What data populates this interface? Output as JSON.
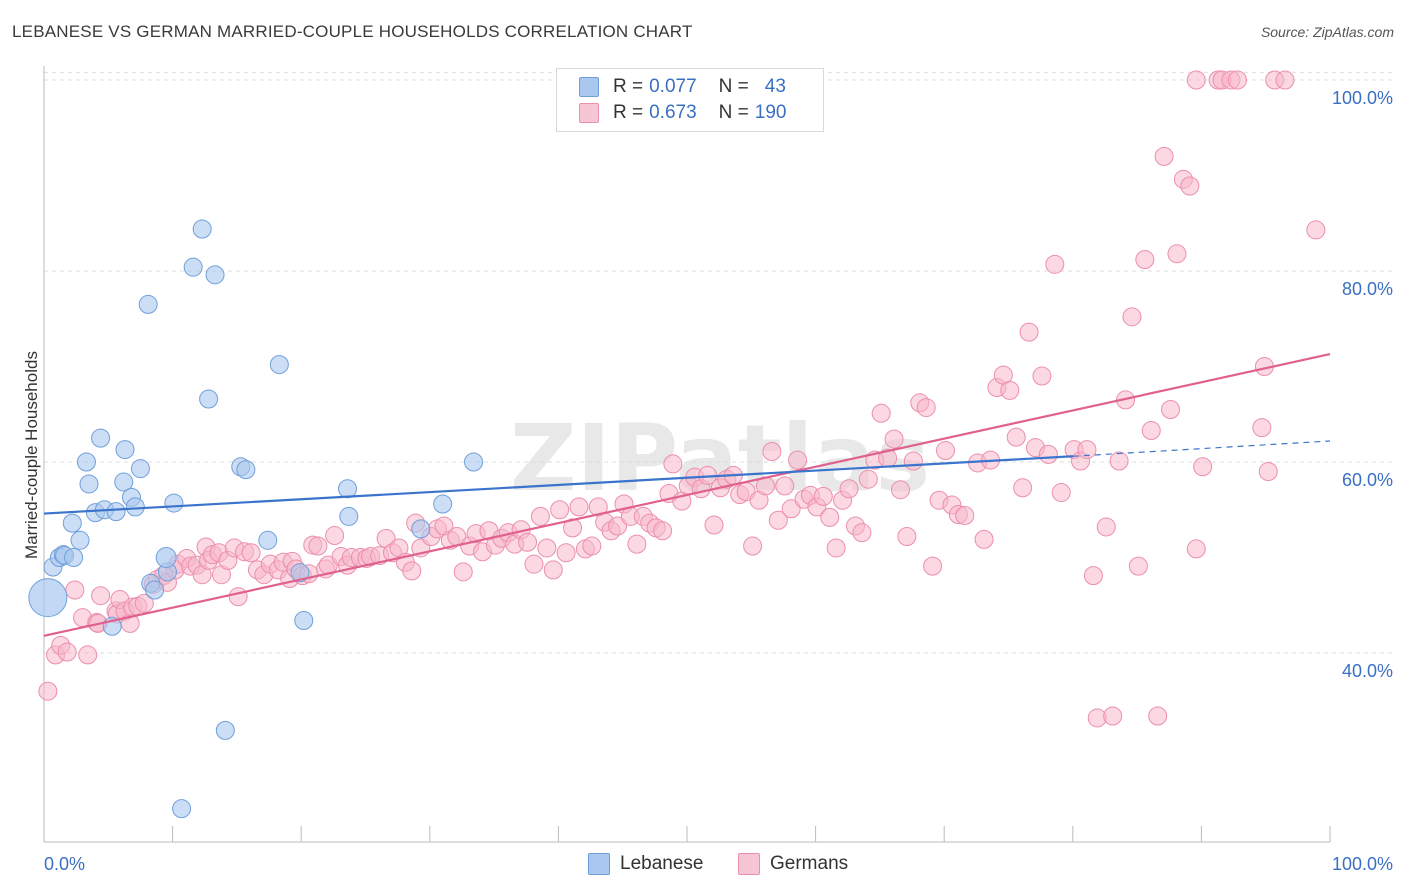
{
  "title": "LEBANESE VS GERMAN MARRIED-COUPLE HOUSEHOLDS CORRELATION CHART",
  "source": "Source: ZipAtlas.com",
  "watermark": "ZIPatlas",
  "colors": {
    "lebanese_fill": "#aac8ef",
    "lebanese_stroke": "#6f9fdb",
    "lebanese_line": "#3a74cc",
    "germans_fill": "#f7b8cb",
    "germans_stroke": "#ec8fac",
    "germans_line": "#e0608e",
    "axis_text": "#3a6fc4",
    "grid": "#dddddd"
  },
  "legend": {
    "rows": [
      {
        "r_label": "R =",
        "r_value": "0.077",
        "n_label": "N =",
        "n_value": "43"
      },
      {
        "r_label": "R =",
        "r_value": "0.673",
        "n_label": "N =",
        "n_value": "190"
      }
    ]
  },
  "bottom_legend": {
    "lebanese": "Lebanese",
    "germans": "Germans"
  },
  "chart_data": {
    "type": "scatter",
    "title": "LEBANESE VS GERMAN MARRIED-COUPLE HOUSEHOLDS CORRELATION CHART",
    "xlabel": "",
    "ylabel": "Married-couple Households",
    "xlim": [
      0,
      100
    ],
    "ylim": [
      20,
      102
    ],
    "x_tick_labels": [
      "0.0%",
      "100.0%"
    ],
    "y_ticks": [
      40,
      60,
      80,
      100
    ],
    "y_tick_labels": [
      "40.0%",
      "60.0%",
      "80.0%",
      "100.0%"
    ],
    "series": [
      {
        "name": "Lebanese",
        "R": 0.077,
        "N": 43,
        "trend": {
          "x0": 0,
          "y0": 54.6,
          "x1": 80,
          "y1": 60.6,
          "dashed_to_x": 100,
          "dashed_to_y": 62.2
        },
        "points": [
          [
            0.7,
            49
          ],
          [
            1.2,
            50
          ],
          [
            1.5,
            50.3
          ],
          [
            2.2,
            53.6
          ],
          [
            2.8,
            51.8
          ],
          [
            1.6,
            50.2
          ],
          [
            2.3,
            50
          ],
          [
            3.3,
            60
          ],
          [
            3.5,
            57.7
          ],
          [
            4.0,
            54.7
          ],
          [
            4.4,
            62.5
          ],
          [
            4.7,
            55
          ],
          [
            5.3,
            42.8
          ],
          [
            5.6,
            54.8
          ],
          [
            6.3,
            61.3
          ],
          [
            6.2,
            57.9
          ],
          [
            6.8,
            56.3
          ],
          [
            7.1,
            55.3
          ],
          [
            7.5,
            59.3
          ],
          [
            8.1,
            76.5
          ],
          [
            8.3,
            47.3
          ],
          [
            8.6,
            46.6
          ],
          [
            9.6,
            48.5
          ],
          [
            10.1,
            55.7
          ],
          [
            10.7,
            23.7
          ],
          [
            11.6,
            80.4
          ],
          [
            12.3,
            84.4
          ],
          [
            12.8,
            66.6
          ],
          [
            13.3,
            79.6
          ],
          [
            14.1,
            31.9
          ],
          [
            15.3,
            59.5
          ],
          [
            15.7,
            59.2
          ],
          [
            17.4,
            51.8
          ],
          [
            18.3,
            70.2
          ],
          [
            19.9,
            48.4
          ],
          [
            20.2,
            43.4
          ],
          [
            23.6,
            57.2
          ],
          [
            23.7,
            54.3
          ],
          [
            29.3,
            53
          ],
          [
            31.0,
            55.6
          ],
          [
            33.4,
            60
          ]
        ],
        "big_points": [
          [
            0.3,
            45.8
          ],
          [
            9.5,
            50
          ]
        ]
      },
      {
        "name": "Germans",
        "R": 0.673,
        "N": 190,
        "trend": {
          "x0": 0,
          "y0": 41.8,
          "x1": 100,
          "y1": 71.3
        },
        "points": [
          [
            0.3,
            36
          ],
          [
            0.9,
            39.8
          ],
          [
            1.3,
            40.8
          ],
          [
            1.8,
            40.1
          ],
          [
            2.4,
            46.6
          ],
          [
            3.0,
            43.7
          ],
          [
            3.4,
            39.8
          ],
          [
            4.1,
            43.2
          ],
          [
            4.2,
            43.1
          ],
          [
            4.4,
            46
          ],
          [
            5.6,
            44.4
          ],
          [
            5.7,
            44.1
          ],
          [
            5.9,
            45.6
          ],
          [
            6.3,
            44.4
          ],
          [
            6.7,
            43.1
          ],
          [
            6.9,
            44.8
          ],
          [
            7.3,
            44.9
          ],
          [
            7.8,
            45.2
          ],
          [
            8.5,
            47.2
          ],
          [
            8.8,
            47.7
          ],
          [
            9.3,
            48.1
          ],
          [
            9.6,
            47.4
          ],
          [
            10.2,
            48.7
          ],
          [
            10.4,
            49.3
          ],
          [
            11.1,
            49.9
          ],
          [
            11.4,
            49.1
          ],
          [
            11.9,
            49.2
          ],
          [
            12.3,
            48.2
          ],
          [
            12.6,
            51.1
          ],
          [
            12.8,
            49.7
          ],
          [
            13.1,
            50.3
          ],
          [
            13.6,
            50.5
          ],
          [
            13.8,
            48.2
          ],
          [
            14.3,
            49.7
          ],
          [
            14.8,
            51
          ],
          [
            15.1,
            45.9
          ],
          [
            15.6,
            50.6
          ],
          [
            16.1,
            50.5
          ],
          [
            16.6,
            48.7
          ],
          [
            17.1,
            48.2
          ],
          [
            17.6,
            49.3
          ],
          [
            18.2,
            48.7
          ],
          [
            18.6,
            49.5
          ],
          [
            19.1,
            47.8
          ],
          [
            19.3,
            49.6
          ],
          [
            19.6,
            48.8
          ],
          [
            20.1,
            48.1
          ],
          [
            20.6,
            48.3
          ],
          [
            20.9,
            51.3
          ],
          [
            21.3,
            51.2
          ],
          [
            21.9,
            48.8
          ],
          [
            22.1,
            49.2
          ],
          [
            22.6,
            52.3
          ],
          [
            23.1,
            50.1
          ],
          [
            23.6,
            49.2
          ],
          [
            23.9,
            50
          ],
          [
            24.6,
            50
          ],
          [
            25.1,
            49.9
          ],
          [
            25.4,
            50.1
          ],
          [
            26.1,
            50.2
          ],
          [
            26.6,
            52
          ],
          [
            27.1,
            50.5
          ],
          [
            27.6,
            51
          ],
          [
            28.1,
            49.5
          ],
          [
            28.6,
            48.6
          ],
          [
            28.9,
            53.6
          ],
          [
            29.3,
            51
          ],
          [
            30.1,
            52.2
          ],
          [
            30.6,
            53
          ],
          [
            31.1,
            53.3
          ],
          [
            31.6,
            51.8
          ],
          [
            32.1,
            52.2
          ],
          [
            32.6,
            48.5
          ],
          [
            33.1,
            51.2
          ],
          [
            33.6,
            52.5
          ],
          [
            34.1,
            50.6
          ],
          [
            34.6,
            52.8
          ],
          [
            35.1,
            51.3
          ],
          [
            35.6,
            52
          ],
          [
            36.1,
            52.6
          ],
          [
            36.6,
            51.4
          ],
          [
            37.1,
            52.9
          ],
          [
            37.6,
            51.6
          ],
          [
            38.1,
            49.3
          ],
          [
            38.6,
            54.3
          ],
          [
            39.1,
            51
          ],
          [
            39.6,
            48.7
          ],
          [
            40.1,
            55
          ],
          [
            40.6,
            50.5
          ],
          [
            41.1,
            53.1
          ],
          [
            41.6,
            55.3
          ],
          [
            42.1,
            50.9
          ],
          [
            42.6,
            51.2
          ],
          [
            43.1,
            55.3
          ],
          [
            43.6,
            53.7
          ],
          [
            44.1,
            52.8
          ],
          [
            44.6,
            53.3
          ],
          [
            45.1,
            55.6
          ],
          [
            45.6,
            54.3
          ],
          [
            46.1,
            51.4
          ],
          [
            46.6,
            54.3
          ],
          [
            47.1,
            53.6
          ],
          [
            47.6,
            53.1
          ],
          [
            48.1,
            52.8
          ],
          [
            48.6,
            56.7
          ],
          [
            48.9,
            59.8
          ],
          [
            49.6,
            55.9
          ],
          [
            50.1,
            57.5
          ],
          [
            50.6,
            58.4
          ],
          [
            51.1,
            57.2
          ],
          [
            51.6,
            58.6
          ],
          [
            52.1,
            53.4
          ],
          [
            52.6,
            57.3
          ],
          [
            53.1,
            58.2
          ],
          [
            53.6,
            58.6
          ],
          [
            54.1,
            56.6
          ],
          [
            54.6,
            56.9
          ],
          [
            55.1,
            51.2
          ],
          [
            55.6,
            56
          ],
          [
            56.1,
            57.5
          ],
          [
            56.6,
            61.1
          ],
          [
            57.1,
            53.9
          ],
          [
            57.6,
            57.5
          ],
          [
            58.1,
            55.1
          ],
          [
            58.6,
            60.2
          ],
          [
            59.1,
            56.1
          ],
          [
            59.6,
            56.5
          ],
          [
            60.1,
            55.3
          ],
          [
            60.6,
            56.4
          ],
          [
            61.1,
            54.2
          ],
          [
            61.6,
            51
          ],
          [
            62.1,
            56
          ],
          [
            62.6,
            57.2
          ],
          [
            63.1,
            53.3
          ],
          [
            63.6,
            52.6
          ],
          [
            64.1,
            58.2
          ],
          [
            64.6,
            60.2
          ],
          [
            65.1,
            65.1
          ],
          [
            65.6,
            60.4
          ],
          [
            66.1,
            62.4
          ],
          [
            66.6,
            57.1
          ],
          [
            67.1,
            52.2
          ],
          [
            67.6,
            60.1
          ],
          [
            68.1,
            66.2
          ],
          [
            68.6,
            65.7
          ],
          [
            69.1,
            49.1
          ],
          [
            69.6,
            56
          ],
          [
            70.1,
            61.2
          ],
          [
            70.6,
            55.5
          ],
          [
            71.1,
            54.5
          ],
          [
            71.6,
            54.4
          ],
          [
            72.6,
            59.9
          ],
          [
            73.1,
            51.9
          ],
          [
            73.6,
            60.2
          ],
          [
            74.1,
            67.8
          ],
          [
            74.6,
            69.1
          ],
          [
            75.1,
            67.5
          ],
          [
            75.6,
            62.6
          ],
          [
            76.1,
            57.3
          ],
          [
            76.6,
            73.6
          ],
          [
            77.1,
            61.5
          ],
          [
            77.6,
            69
          ],
          [
            78.1,
            60.8
          ],
          [
            78.6,
            80.7
          ],
          [
            79.1,
            56.8
          ],
          [
            80.1,
            61.3
          ],
          [
            80.6,
            60.1
          ],
          [
            81.1,
            61.3
          ],
          [
            81.6,
            48.1
          ],
          [
            81.9,
            33.2
          ],
          [
            82.6,
            53.2
          ],
          [
            83.1,
            33.4
          ],
          [
            83.6,
            60.1
          ],
          [
            84.1,
            66.5
          ],
          [
            84.6,
            75.2
          ],
          [
            85.1,
            49.1
          ],
          [
            85.6,
            81.2
          ],
          [
            86.1,
            63.3
          ],
          [
            86.6,
            33.4
          ],
          [
            87.1,
            92
          ],
          [
            87.6,
            65.5
          ],
          [
            88.1,
            81.8
          ],
          [
            88.6,
            89.6
          ],
          [
            89.1,
            88.9
          ],
          [
            89.6,
            50.9
          ],
          [
            90.1,
            59.5
          ],
          [
            89.6,
            100
          ],
          [
            91.3,
            100
          ],
          [
            91.6,
            100
          ],
          [
            92.3,
            100
          ],
          [
            92.8,
            100
          ],
          [
            95.7,
            100
          ],
          [
            96.5,
            100
          ],
          [
            95.2,
            59
          ],
          [
            94.7,
            63.6
          ],
          [
            94.9,
            70
          ],
          [
            98.9,
            84.3
          ]
        ]
      }
    ]
  }
}
